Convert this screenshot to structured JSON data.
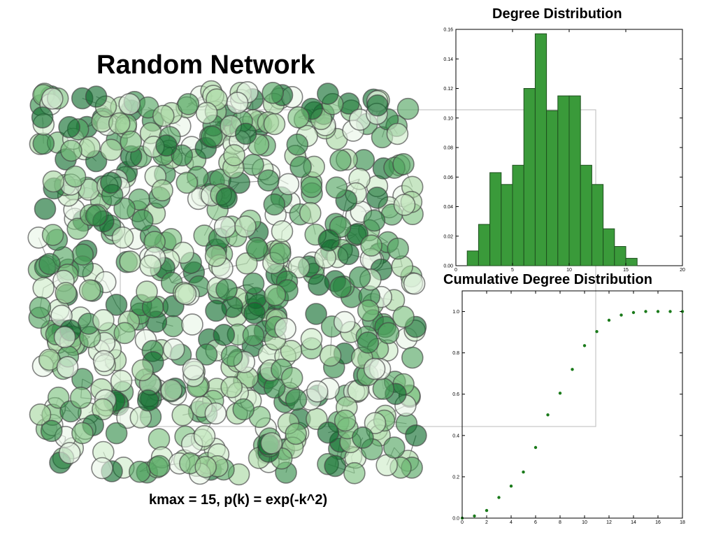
{
  "title": "Random Network",
  "caption": "kmax = 15, p(k) = exp(-k^2)",
  "network": {
    "node_colors": [
      "#0b6b2a",
      "#2e8b46",
      "#4fa35d",
      "#79c07c",
      "#a6d7a0",
      "#cdebc8",
      "#e9f6e6"
    ],
    "edge_color": "#777777"
  },
  "chart_data": [
    {
      "type": "bar",
      "title": "Degree Distribution",
      "xlabel": "",
      "ylabel": "",
      "xlim": [
        0,
        20
      ],
      "ylim": [
        0,
        0.16
      ],
      "xticks": [
        "0",
        "5",
        "10",
        "15",
        "20"
      ],
      "yticks": [
        "0.00",
        "0.02",
        "0.04",
        "0.06",
        "0.08",
        "0.10",
        "0.12",
        "0.14",
        "0.16"
      ],
      "bin_width": 1,
      "bins": [
        1,
        2,
        3,
        4,
        5,
        6,
        7,
        8,
        9,
        10,
        11,
        12,
        13,
        14,
        15
      ],
      "values": [
        0.01,
        0.028,
        0.063,
        0.055,
        0.068,
        0.12,
        0.157,
        0.105,
        0.115,
        0.115,
        0.068,
        0.055,
        0.025,
        0.013,
        0.005
      ],
      "bar_color": "#3a9a3a"
    },
    {
      "type": "scatter",
      "title": "Cumulative Degree Distribution",
      "xlabel": "",
      "ylabel": "",
      "xlim": [
        0,
        18
      ],
      "ylim": [
        0,
        1.1
      ],
      "xticks": [
        "0",
        "2",
        "4",
        "6",
        "8",
        "10",
        "12",
        "14",
        "16",
        "18"
      ],
      "yticks": [
        "0.0",
        "0.2",
        "0.4",
        "0.6",
        "0.8",
        "1.0"
      ],
      "x": [
        0,
        1,
        2,
        3,
        4,
        5,
        6,
        7,
        8,
        9,
        10,
        11,
        12,
        13,
        14,
        15,
        16,
        17,
        18
      ],
      "y": [
        0.0,
        0.01,
        0.037,
        0.1,
        0.155,
        0.223,
        0.342,
        0.5,
        0.605,
        0.72,
        0.835,
        0.903,
        0.958,
        0.983,
        0.995,
        1.0,
        1.0,
        1.0,
        1.0
      ],
      "point_color": "#1a7a1a"
    }
  ]
}
